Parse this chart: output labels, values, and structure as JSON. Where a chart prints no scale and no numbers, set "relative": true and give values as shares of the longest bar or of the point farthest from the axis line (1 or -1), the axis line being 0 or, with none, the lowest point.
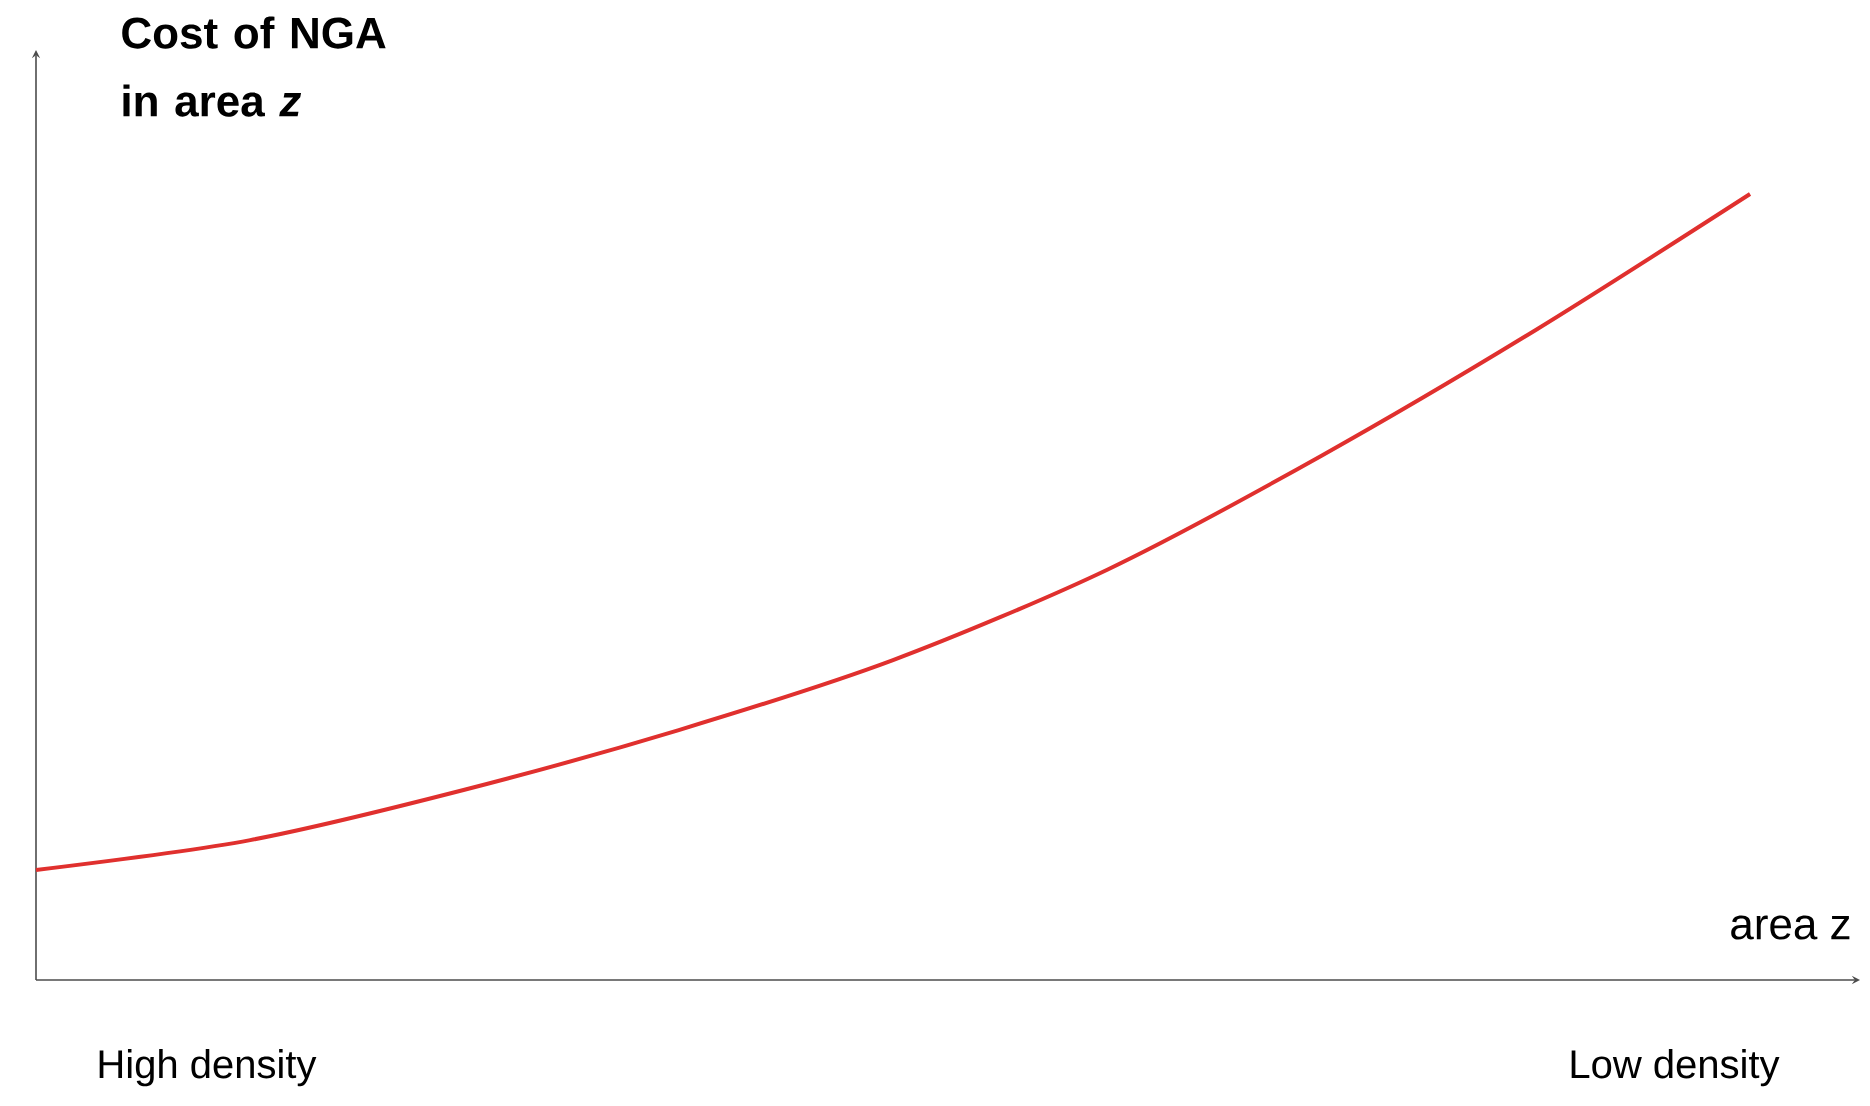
{
  "chart_data": {
    "type": "line",
    "relative": true,
    "color": "#e0302e",
    "xlabel": "area z",
    "ylabel": "Cost of NGA in area *z*",
    "categories": [
      null,
      null,
      null,
      null,
      null,
      null,
      null,
      null,
      null
    ],
    "values": [
      0.14,
      0.178,
      0.242,
      0.318,
      0.407,
      0.522,
      0.667,
      0.827,
      1
    ],
    "annotations": [
      "High density",
      "Low density"
    ]
  }
}
